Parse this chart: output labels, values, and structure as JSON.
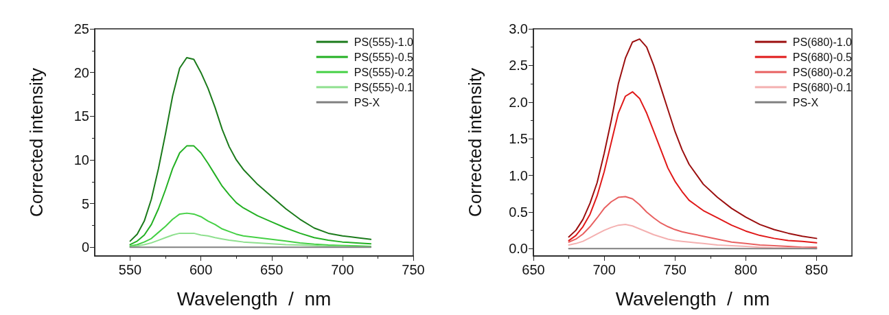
{
  "chart_data": [
    {
      "type": "line",
      "xlabel": "Wavelength  /  nm",
      "ylabel": "Corrected intensity",
      "xlim": [
        525,
        750
      ],
      "xticks": [
        550,
        600,
        650,
        700,
        750
      ],
      "ylim": [
        -1,
        25
      ],
      "yticks": [
        0,
        5,
        10,
        15,
        20,
        25
      ],
      "grid": false,
      "legend": "top right",
      "marker": "none",
      "line_style": "solid",
      "x": [
        550,
        555,
        560,
        565,
        570,
        575,
        580,
        585,
        590,
        595,
        600,
        605,
        610,
        615,
        620,
        625,
        630,
        640,
        650,
        660,
        670,
        680,
        690,
        700,
        710,
        720
      ],
      "series": [
        {
          "name": "PS(555)-1.0",
          "color": "#1a7a1a",
          "values": [
            0.7,
            1.5,
            3.0,
            5.5,
            9.0,
            13.0,
            17.3,
            20.5,
            21.7,
            21.5,
            20.0,
            18.2,
            16.0,
            13.5,
            11.5,
            10.0,
            8.9,
            7.2,
            5.8,
            4.4,
            3.2,
            2.2,
            1.6,
            1.3,
            1.1,
            0.9
          ]
        },
        {
          "name": "PS(555)-0.5",
          "color": "#22b022",
          "values": [
            0.3,
            0.7,
            1.4,
            2.6,
            4.4,
            6.6,
            9.0,
            10.8,
            11.6,
            11.6,
            10.8,
            9.6,
            8.3,
            7.0,
            6.0,
            5.1,
            4.5,
            3.6,
            2.9,
            2.2,
            1.6,
            1.1,
            0.8,
            0.6,
            0.5,
            0.4
          ]
        },
        {
          "name": "PS(555)-0.2",
          "color": "#44d044",
          "values": [
            0.15,
            0.3,
            0.6,
            1.0,
            1.7,
            2.4,
            3.2,
            3.8,
            3.9,
            3.8,
            3.5,
            3.0,
            2.6,
            2.1,
            1.8,
            1.5,
            1.3,
            1.1,
            0.9,
            0.7,
            0.5,
            0.35,
            0.25,
            0.2,
            0.15,
            0.1
          ]
        },
        {
          "name": "PS(555)-0.1",
          "color": "#8ee08e",
          "values": [
            0.05,
            0.15,
            0.3,
            0.5,
            0.8,
            1.1,
            1.4,
            1.6,
            1.6,
            1.6,
            1.4,
            1.3,
            1.1,
            0.95,
            0.8,
            0.7,
            0.6,
            0.5,
            0.4,
            0.3,
            0.25,
            0.2,
            0.12,
            0.08,
            0.05,
            0.05
          ]
        },
        {
          "name": "PS-X",
          "color": "#808080",
          "values": [
            0,
            0,
            0,
            0,
            0,
            0,
            0,
            0,
            0,
            0,
            0,
            0,
            0,
            0,
            0,
            0,
            0,
            0,
            0,
            0,
            0,
            0,
            0,
            0,
            0,
            0
          ]
        }
      ]
    },
    {
      "type": "line",
      "xlabel": "Wavelength  /  nm",
      "ylabel": "Corrected intensity",
      "xlim": [
        650,
        875
      ],
      "xticks": [
        650,
        700,
        750,
        800,
        850
      ],
      "ylim": [
        -0.1,
        3.0
      ],
      "yticks": [
        {
          "value": 0,
          "label": "0.0"
        },
        0.5,
        {
          "value": 1,
          "label": "1.0"
        },
        1.5,
        {
          "value": 2,
          "label": "2.0"
        },
        2.5,
        {
          "value": 3,
          "label": "3.0"
        }
      ],
      "grid": false,
      "legend": "top right",
      "marker": "none",
      "line_style": "solid",
      "x": [
        675,
        680,
        685,
        690,
        695,
        700,
        705,
        710,
        715,
        720,
        725,
        730,
        735,
        740,
        745,
        750,
        755,
        760,
        770,
        780,
        790,
        800,
        810,
        820,
        830,
        840,
        850
      ],
      "series": [
        {
          "name": "PS(680)-1.0",
          "color": "#9b0e0e",
          "values": [
            0.16,
            0.25,
            0.4,
            0.62,
            0.9,
            1.3,
            1.75,
            2.25,
            2.6,
            2.82,
            2.86,
            2.75,
            2.5,
            2.2,
            1.9,
            1.6,
            1.35,
            1.15,
            0.88,
            0.7,
            0.55,
            0.43,
            0.33,
            0.26,
            0.21,
            0.17,
            0.14
          ]
        },
        {
          "name": "PS(680)-0.5",
          "color": "#e01818",
          "values": [
            0.11,
            0.18,
            0.3,
            0.47,
            0.72,
            1.05,
            1.45,
            1.85,
            2.08,
            2.14,
            2.05,
            1.85,
            1.6,
            1.35,
            1.1,
            0.92,
            0.78,
            0.66,
            0.52,
            0.42,
            0.32,
            0.24,
            0.18,
            0.14,
            0.11,
            0.1,
            0.08
          ]
        },
        {
          "name": "PS(680)-0.2",
          "color": "#e86060",
          "values": [
            0.09,
            0.13,
            0.2,
            0.3,
            0.42,
            0.55,
            0.64,
            0.7,
            0.71,
            0.68,
            0.6,
            0.5,
            0.42,
            0.35,
            0.3,
            0.26,
            0.23,
            0.21,
            0.17,
            0.13,
            0.09,
            0.07,
            0.05,
            0.04,
            0.03,
            0.02,
            0.02
          ]
        },
        {
          "name": "PS(680)-0.1",
          "color": "#f4b0b0",
          "values": [
            0.05,
            0.07,
            0.1,
            0.15,
            0.2,
            0.25,
            0.29,
            0.32,
            0.33,
            0.31,
            0.27,
            0.23,
            0.19,
            0.16,
            0.13,
            0.11,
            0.1,
            0.09,
            0.07,
            0.05,
            0.04,
            0.03,
            0.02,
            0.01,
            0.01,
            0.01,
            0.0
          ]
        },
        {
          "name": "PS-X",
          "color": "#808080",
          "values": [
            0,
            0,
            0,
            0,
            0,
            0,
            0,
            0,
            0,
            0,
            0,
            0,
            0,
            0,
            0,
            0,
            0,
            0,
            0,
            0,
            0,
            0,
            0,
            0,
            0,
            0,
            0
          ]
        }
      ]
    }
  ]
}
